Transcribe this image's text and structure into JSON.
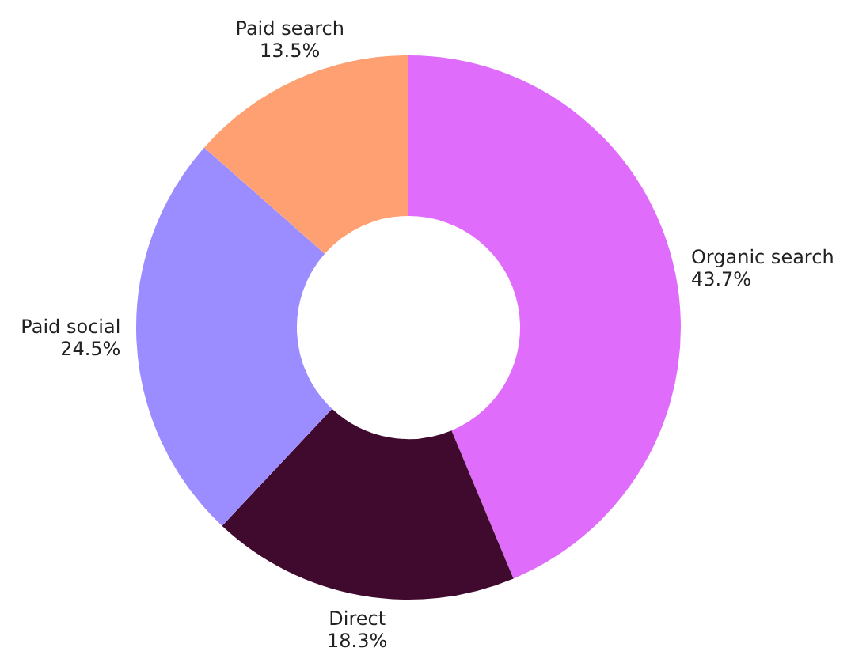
{
  "chart_data": {
    "type": "donut",
    "categories": [
      "Organic search",
      "Direct",
      "Paid social",
      "Paid search"
    ],
    "values": [
      43.7,
      18.3,
      24.5,
      13.5
    ],
    "colors": [
      "#e06cfc",
      "#3f0a2e",
      "#9b8cff",
      "#ffa072"
    ],
    "value_labels": [
      "43.7%",
      "18.3%",
      "24.5%",
      "13.5%"
    ],
    "legend": false
  }
}
